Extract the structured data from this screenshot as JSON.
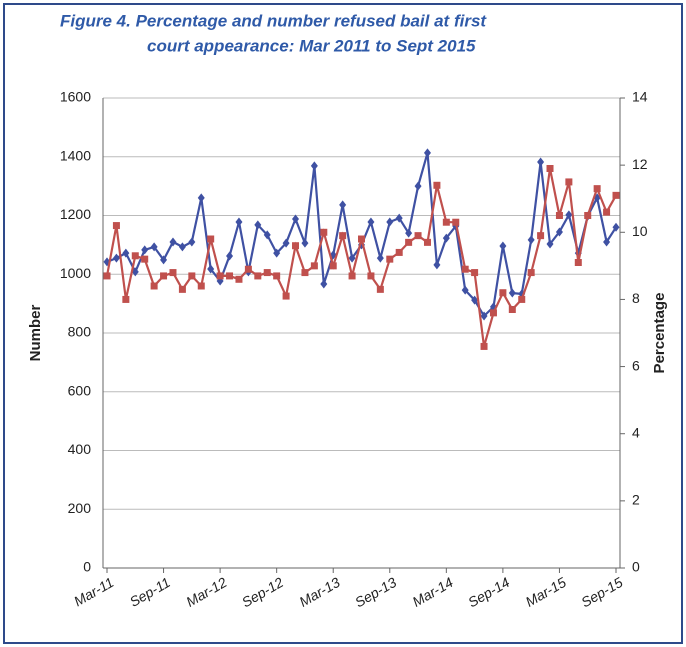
{
  "chart_data": {
    "type": "line",
    "title": [
      "Figure 4.   Percentage and number  refused bail at first",
      "court appearance:  Mar 2011 to Sept 2015"
    ],
    "y_label": "Number",
    "y2_label": "Percentage",
    "categories": [
      "Mar-11",
      null,
      null,
      null,
      null,
      null,
      "Sep-11",
      null,
      null,
      null,
      null,
      null,
      "Mar-12",
      null,
      null,
      null,
      null,
      null,
      "Sep-12",
      null,
      null,
      null,
      null,
      null,
      "Mar-13",
      null,
      null,
      null,
      null,
      null,
      "Sep-13",
      null,
      null,
      null,
      null,
      null,
      "Mar-14",
      null,
      null,
      null,
      null,
      null,
      "Sep-14",
      null,
      null,
      null,
      null,
      null,
      "Mar-15",
      null,
      null,
      null,
      null,
      null,
      "Sep-15"
    ],
    "ylim": [
      0,
      1600
    ],
    "yticks": [
      0,
      200,
      400,
      600,
      800,
      1000,
      1200,
      1400,
      1600
    ],
    "y2lim": [
      0,
      14
    ],
    "y2ticks": [
      0,
      2,
      4,
      6,
      8,
      10,
      12,
      14
    ],
    "grid": true,
    "series": [
      {
        "color": "#3f51a3",
        "marker": "diamond",
        "values": [
          1042,
          1055,
          1072,
          1008,
          1083,
          1093,
          1049,
          1110,
          1093,
          1110,
          1260,
          1018,
          977,
          1062,
          1178,
          1008,
          1168,
          1134,
          1072,
          1106,
          1188,
          1106,
          1369,
          967,
          1066,
          1236,
          1055,
          1100,
          1178,
          1055,
          1178,
          1191,
          1140,
          1300,
          1413,
          1032,
          1123,
          1164,
          946,
          912,
          858,
          889,
          1096,
          936,
          933,
          1117,
          1382,
          1103,
          1144,
          1202,
          1072,
          1198,
          1260,
          1110,
          1160
        ]
      },
      {
        "color": "#c0504d",
        "marker": "square",
        "axis": "y2",
        "values": [
          8.7,
          10.2,
          8.0,
          9.3,
          9.2,
          8.4,
          8.7,
          8.8,
          8.3,
          8.7,
          8.4,
          9.8,
          8.7,
          8.7,
          8.6,
          8.9,
          8.7,
          8.8,
          8.7,
          8.1,
          9.6,
          8.8,
          9.0,
          10.0,
          9.0,
          9.9,
          8.7,
          9.8,
          8.7,
          8.3,
          9.2,
          9.4,
          9.7,
          9.9,
          9.7,
          11.4,
          10.3,
          10.3,
          8.9,
          8.8,
          6.6,
          7.6,
          8.2,
          7.7,
          8.0,
          8.8,
          9.9,
          11.9,
          10.5,
          11.5,
          9.1,
          10.5,
          11.3,
          10.6,
          11.1
        ]
      }
    ]
  }
}
